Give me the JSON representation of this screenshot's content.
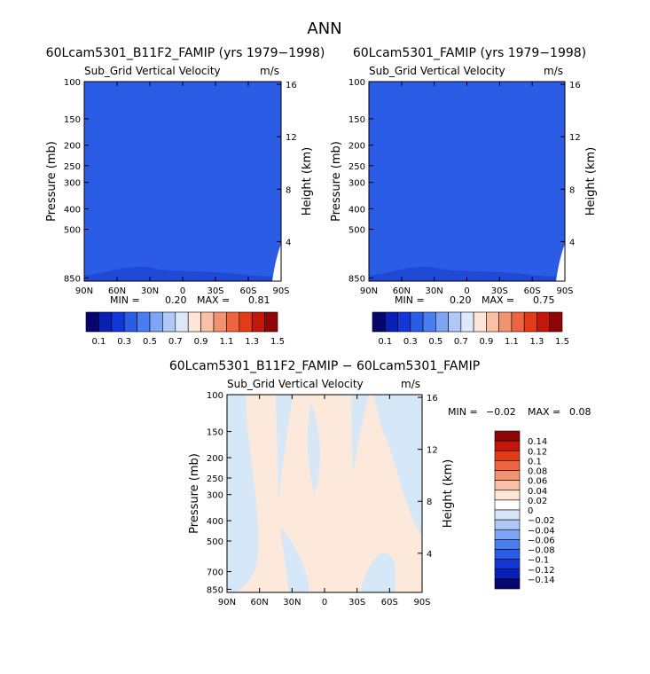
{
  "page_title": "ANN",
  "colors": {
    "field_blue": "#2b5ce6",
    "field_bg_diff": "#fde9dc",
    "diff_blue": "#d6e8f8"
  },
  "chart_data": [
    {
      "type": "heatmap",
      "title": "60Lcam5301_B11F2_FAMIP (yrs 1979−1998)",
      "subtitle": "Sub_Grid Vertical Velocity",
      "units": "m/s",
      "ylabel": "Pressure (mb)",
      "ylabel_right": "Height (km)",
      "x_ticks": [
        "90N",
        "60N",
        "30N",
        "0",
        "30S",
        "60S",
        "90S"
      ],
      "y_ticks": [
        "100",
        "150",
        "200",
        "250",
        "300",
        "400",
        "500",
        "850"
      ],
      "y_ticks_right": [
        "16",
        "12",
        "8",
        "4"
      ],
      "stats": {
        "min_label": "MIN =",
        "min": "0.20",
        "max_label": "MAX =",
        "max": "0.81"
      },
      "colorbar": {
        "labels": [
          "0.1",
          "0.3",
          "0.5",
          "0.7",
          "0.9",
          "1.1",
          "1.3",
          "1.5"
        ],
        "colors": [
          "#06066e",
          "#0a20b4",
          "#1236d8",
          "#2b5ce6",
          "#4a7df0",
          "#7ea5f5",
          "#b0c8f8",
          "#dde8fb",
          "#fde6d8",
          "#f8c0a4",
          "#f39270",
          "#ee6440",
          "#e33b18",
          "#c4170c",
          "#8e0606"
        ]
      }
    },
    {
      "type": "heatmap",
      "title": "60Lcam5301_FAMIP (yrs 1979−1998)",
      "subtitle": "Sub_Grid Vertical Velocity",
      "units": "m/s",
      "ylabel": "Pressure (mb)",
      "ylabel_right": "Height (km)",
      "x_ticks": [
        "90N",
        "60N",
        "30N",
        "0",
        "30S",
        "60S",
        "90S"
      ],
      "y_ticks": [
        "100",
        "150",
        "200",
        "250",
        "300",
        "400",
        "500",
        "850"
      ],
      "y_ticks_right": [
        "16",
        "12",
        "8",
        "4"
      ],
      "stats": {
        "min_label": "MIN =",
        "min": "0.20",
        "max_label": "MAX =",
        "max": "0.75"
      },
      "colorbar": {
        "labels": [
          "0.1",
          "0.3",
          "0.5",
          "0.7",
          "0.9",
          "1.1",
          "1.3",
          "1.5"
        ],
        "colors": [
          "#06066e",
          "#0a20b4",
          "#1236d8",
          "#2b5ce6",
          "#4a7df0",
          "#7ea5f5",
          "#b0c8f8",
          "#dde8fb",
          "#fde6d8",
          "#f8c0a4",
          "#f39270",
          "#ee6440",
          "#e33b18",
          "#c4170c",
          "#8e0606"
        ]
      }
    },
    {
      "type": "heatmap",
      "title": "60Lcam5301_B11F2_FAMIP − 60Lcam5301_FAMIP",
      "subtitle": "Sub_Grid Vertical Velocity",
      "units": "m/s",
      "ylabel": "Pressure (mb)",
      "ylabel_right": "Height (km)",
      "x_ticks": [
        "90N",
        "60N",
        "30N",
        "0",
        "30S",
        "60S",
        "90S"
      ],
      "y_ticks": [
        "100",
        "150",
        "200",
        "250",
        "300",
        "400",
        "500",
        "700",
        "850"
      ],
      "y_ticks_right": [
        "16",
        "12",
        "8",
        "4"
      ],
      "stats": {
        "min_label": "MIN =",
        "min": "−0.02",
        "max_label": "MAX =",
        "max": "0.08"
      },
      "colorbar": {
        "labels": [
          "0.14",
          "0.12",
          "0.1",
          "0.08",
          "0.06",
          "0.04",
          "0.02",
          "0",
          "−0.02",
          "−0.04",
          "−0.06",
          "−0.08",
          "−0.1",
          "−0.12",
          "−0.14"
        ],
        "colors": [
          "#8e0606",
          "#c4170c",
          "#e33b18",
          "#ee6440",
          "#f39270",
          "#f8c0a4",
          "#fde6d8",
          "#ffffff",
          "#d6e8f8",
          "#b0c8f8",
          "#7ea5f5",
          "#4a7df0",
          "#2b5ce6",
          "#1236d8",
          "#0a20b4",
          "#06066e"
        ]
      }
    }
  ]
}
